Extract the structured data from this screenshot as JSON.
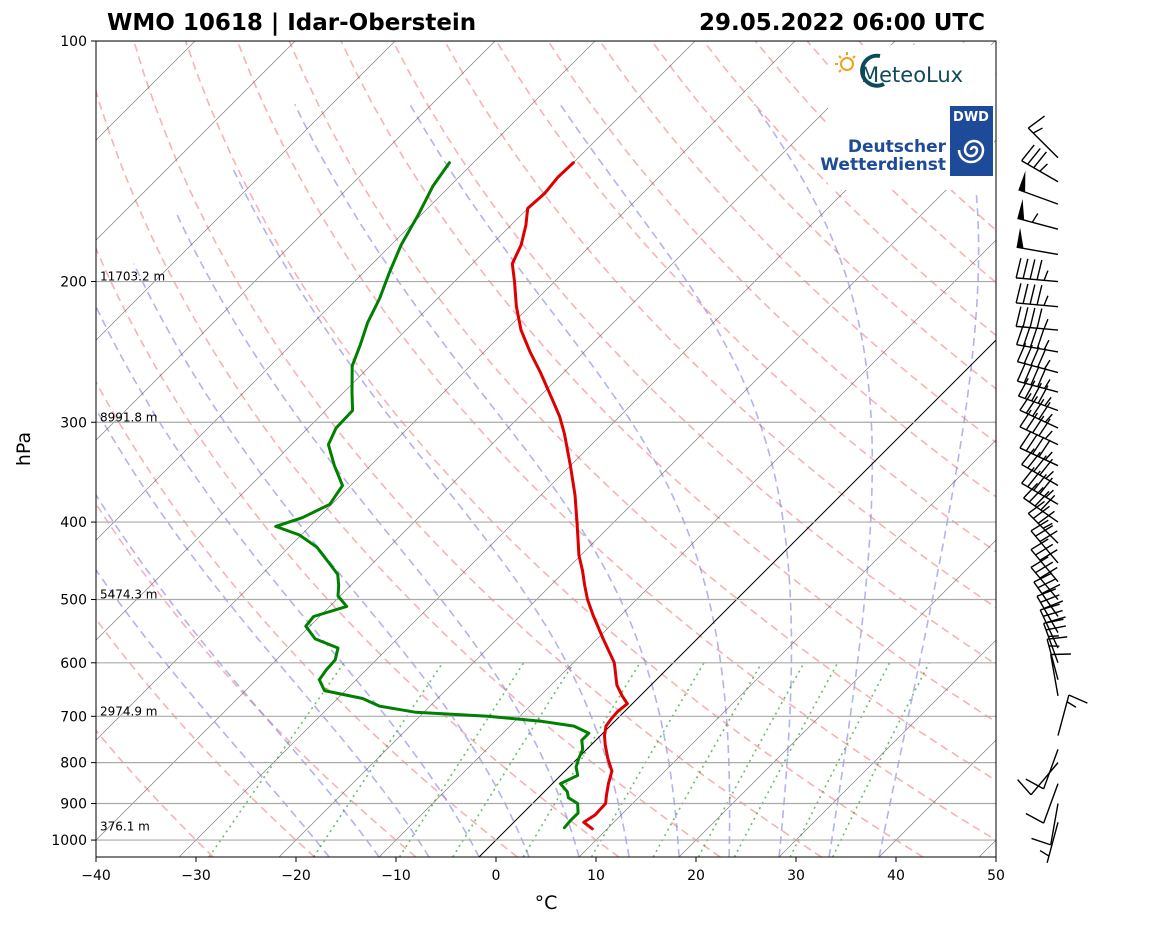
{
  "title_left": "WMO 10618 | Idar-Oberstein",
  "title_right": "29.05.2022 06:00 UTC",
  "logos": {
    "meteolux": "MeteoLux",
    "dwd_badge": "DWD",
    "dwd_line1": "Deutscher",
    "dwd_line2": "Wetterdienst"
  },
  "colors": {
    "temperature": "#dd0000",
    "dewpoint": "#008000",
    "dry_adiabat": "#f08080",
    "moist_adiabat": "#8080e0",
    "mixing_ratio": "#30a030",
    "isotherm": "#555555",
    "parcel": "#000000"
  },
  "chart_data": {
    "type": "line",
    "subtype": "skew-t log-p",
    "xlabel": "°C",
    "ylabel": "hPa",
    "xlim": [
      -40,
      50
    ],
    "ylim": [
      1050,
      100
    ],
    "y_scale": "log",
    "grid": true,
    "x_ticks": [
      -40,
      -30,
      -20,
      -10,
      0,
      10,
      20,
      30,
      40,
      50
    ],
    "x_tick_labels": [
      "−40",
      "−30",
      "−20",
      "−10",
      "0",
      "10",
      "20",
      "30",
      "40",
      "50"
    ],
    "y_ticks": [
      100,
      200,
      300,
      400,
      500,
      600,
      700,
      800,
      900,
      1000
    ],
    "y_tick_labels": [
      "100",
      "200",
      "300",
      "400",
      "500",
      "600",
      "700",
      "800",
      "900",
      "1000"
    ],
    "height_labels": [
      {
        "pressure": 200,
        "text": "11703.2 m"
      },
      {
        "pressure": 300,
        "text": "8991.8 m"
      },
      {
        "pressure": 500,
        "text": "5474.3 m"
      },
      {
        "pressure": 700,
        "text": "2974.9 m"
      },
      {
        "pressure": 975,
        "text": "376.1 m"
      }
    ],
    "series": [
      {
        "key": "temperature",
        "points": [
          [
            968,
            8.5
          ],
          [
            950,
            7.0
          ],
          [
            930,
            7.4
          ],
          [
            900,
            7.3
          ],
          [
            880,
            6.6
          ],
          [
            850,
            5.6
          ],
          [
            820,
            4.7
          ],
          [
            790,
            3.0
          ],
          [
            760,
            1.4
          ],
          [
            740,
            0.4
          ],
          [
            720,
            -0.4
          ],
          [
            705,
            -0.6
          ],
          [
            690,
            -0.7
          ],
          [
            675,
            -0.5
          ],
          [
            660,
            -1.8
          ],
          [
            640,
            -3.4
          ],
          [
            600,
            -5.9
          ],
          [
            560,
            -9.4
          ],
          [
            525,
            -12.6
          ],
          [
            500,
            -14.9
          ],
          [
            480,
            -16.6
          ],
          [
            460,
            -18.3
          ],
          [
            440,
            -20.2
          ],
          [
            420,
            -21.9
          ],
          [
            400,
            -23.7
          ],
          [
            370,
            -26.6
          ],
          [
            340,
            -30.0
          ],
          [
            310,
            -33.8
          ],
          [
            295,
            -36.0
          ],
          [
            280,
            -38.6
          ],
          [
            260,
            -42.3
          ],
          [
            245,
            -45.4
          ],
          [
            230,
            -48.5
          ],
          [
            215,
            -51.3
          ],
          [
            200,
            -54.0
          ],
          [
            190,
            -56.0
          ],
          [
            180,
            -57.0
          ],
          [
            170,
            -58.5
          ],
          [
            162,
            -60.0
          ],
          [
            155,
            -59.8
          ],
          [
            148,
            -60.1
          ],
          [
            142,
            -60.0
          ]
        ]
      },
      {
        "key": "dewpoint",
        "points": [
          [
            965,
            5.6
          ],
          [
            945,
            5.5
          ],
          [
            925,
            5.5
          ],
          [
            900,
            4.5
          ],
          [
            885,
            3.0
          ],
          [
            870,
            2.3
          ],
          [
            850,
            0.8
          ],
          [
            830,
            1.7
          ],
          [
            810,
            0.7
          ],
          [
            790,
            0.1
          ],
          [
            770,
            -0.4
          ],
          [
            750,
            -1.4
          ],
          [
            735,
            -1.4
          ],
          [
            720,
            -3.6
          ],
          [
            710,
            -7.4
          ],
          [
            700,
            -13.2
          ],
          [
            692,
            -20.8
          ],
          [
            680,
            -25.0
          ],
          [
            665,
            -27.5
          ],
          [
            650,
            -32.1
          ],
          [
            630,
            -33.7
          ],
          [
            612,
            -34.0
          ],
          [
            595,
            -34.1
          ],
          [
            575,
            -35.0
          ],
          [
            560,
            -38.2
          ],
          [
            540,
            -40.4
          ],
          [
            525,
            -40.6
          ],
          [
            510,
            -38.3
          ],
          [
            495,
            -40.2
          ],
          [
            480,
            -41.2
          ],
          [
            465,
            -42.4
          ],
          [
            450,
            -44.4
          ],
          [
            430,
            -47.2
          ],
          [
            415,
            -50.2
          ],
          [
            405,
            -53.4
          ],
          [
            395,
            -51.6
          ],
          [
            380,
            -50.2
          ],
          [
            360,
            -50.8
          ],
          [
            340,
            -53.6
          ],
          [
            320,
            -56.3
          ],
          [
            305,
            -57.2
          ],
          [
            290,
            -57.3
          ],
          [
            275,
            -59.2
          ],
          [
            255,
            -61.8
          ],
          [
            240,
            -63.1
          ],
          [
            225,
            -64.6
          ],
          [
            210,
            -65.8
          ],
          [
            195,
            -67.4
          ],
          [
            180,
            -69.0
          ],
          [
            165,
            -70.3
          ],
          [
            152,
            -71.7
          ],
          [
            142,
            -72.4
          ]
        ]
      }
    ],
    "wind_barbs": [
      {
        "pressure": 140,
        "direction": 315,
        "speed": 15
      },
      {
        "pressure": 150,
        "direction": 300,
        "speed": 35
      },
      {
        "pressure": 160,
        "direction": 290,
        "speed": 50
      },
      {
        "pressure": 172,
        "direction": 285,
        "speed": 55
      },
      {
        "pressure": 185,
        "direction": 280,
        "speed": 50
      },
      {
        "pressure": 200,
        "direction": 275,
        "speed": 45
      },
      {
        "pressure": 215,
        "direction": 275,
        "speed": 45
      },
      {
        "pressure": 230,
        "direction": 275,
        "speed": 45
      },
      {
        "pressure": 245,
        "direction": 280,
        "speed": 45
      },
      {
        "pressure": 260,
        "direction": 285,
        "speed": 45
      },
      {
        "pressure": 275,
        "direction": 285,
        "speed": 45
      },
      {
        "pressure": 290,
        "direction": 290,
        "speed": 45
      },
      {
        "pressure": 305,
        "direction": 295,
        "speed": 45
      },
      {
        "pressure": 320,
        "direction": 295,
        "speed": 45
      },
      {
        "pressure": 340,
        "direction": 295,
        "speed": 45
      },
      {
        "pressure": 360,
        "direction": 300,
        "speed": 45
      },
      {
        "pressure": 380,
        "direction": 300,
        "speed": 45
      },
      {
        "pressure": 400,
        "direction": 305,
        "speed": 40
      },
      {
        "pressure": 425,
        "direction": 315,
        "speed": 35
      },
      {
        "pressure": 450,
        "direction": 320,
        "speed": 30
      },
      {
        "pressure": 475,
        "direction": 320,
        "speed": 30
      },
      {
        "pressure": 500,
        "direction": 320,
        "speed": 30
      },
      {
        "pressure": 525,
        "direction": 325,
        "speed": 30
      },
      {
        "pressure": 550,
        "direction": 330,
        "speed": 30
      },
      {
        "pressure": 575,
        "direction": 335,
        "speed": 30
      },
      {
        "pressure": 600,
        "direction": 340,
        "speed": 25
      },
      {
        "pressure": 630,
        "direction": 345,
        "speed": 15
      },
      {
        "pressure": 660,
        "direction": 350,
        "speed": 10
      },
      {
        "pressure": 740,
        "direction": 15,
        "speed": 15
      },
      {
        "pressure": 770,
        "direction": 200,
        "speed": 10
      },
      {
        "pressure": 800,
        "direction": 220,
        "speed": 10
      },
      {
        "pressure": 850,
        "direction": 200,
        "speed": 10
      },
      {
        "pressure": 900,
        "direction": 190,
        "speed": 10
      },
      {
        "pressure": 950,
        "direction": 195,
        "speed": 5
      }
    ]
  }
}
